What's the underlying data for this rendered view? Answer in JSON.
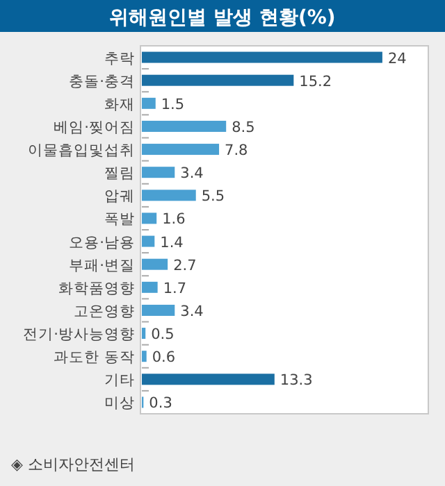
{
  "chart_data": {
    "type": "bar",
    "orientation": "horizontal",
    "title": "위해원인별 발생 현황(%)",
    "categories": [
      "추락",
      "충돌·충격",
      "화재",
      "베임·찢어짐",
      "이물흡입및섭취",
      "찔림",
      "압궤",
      "폭발",
      "오용·남용",
      "부패·변질",
      "화학품영향",
      "고온영향",
      "전기·방사능영향",
      "과도한 동작",
      "기타",
      "미상"
    ],
    "values": [
      24,
      15.2,
      1.5,
      8.5,
      7.8,
      3.4,
      5.5,
      1.6,
      1.4,
      2.7,
      1.7,
      3.4,
      0.5,
      0.6,
      13.3,
      0.3
    ],
    "colors": [
      "#1b6fa3",
      "#1b6fa3",
      "#4aa0d2",
      "#4aa0d2",
      "#4aa0d2",
      "#4aa0d2",
      "#4aa0d2",
      "#4aa0d2",
      "#4aa0d2",
      "#4aa0d2",
      "#4aa0d2",
      "#4aa0d2",
      "#4aa0d2",
      "#4aa0d2",
      "#1b6fa3",
      "#4aa0d2"
    ],
    "data_labels": true,
    "annotations": [
      "◈ 소비자안전센터"
    ]
  }
}
